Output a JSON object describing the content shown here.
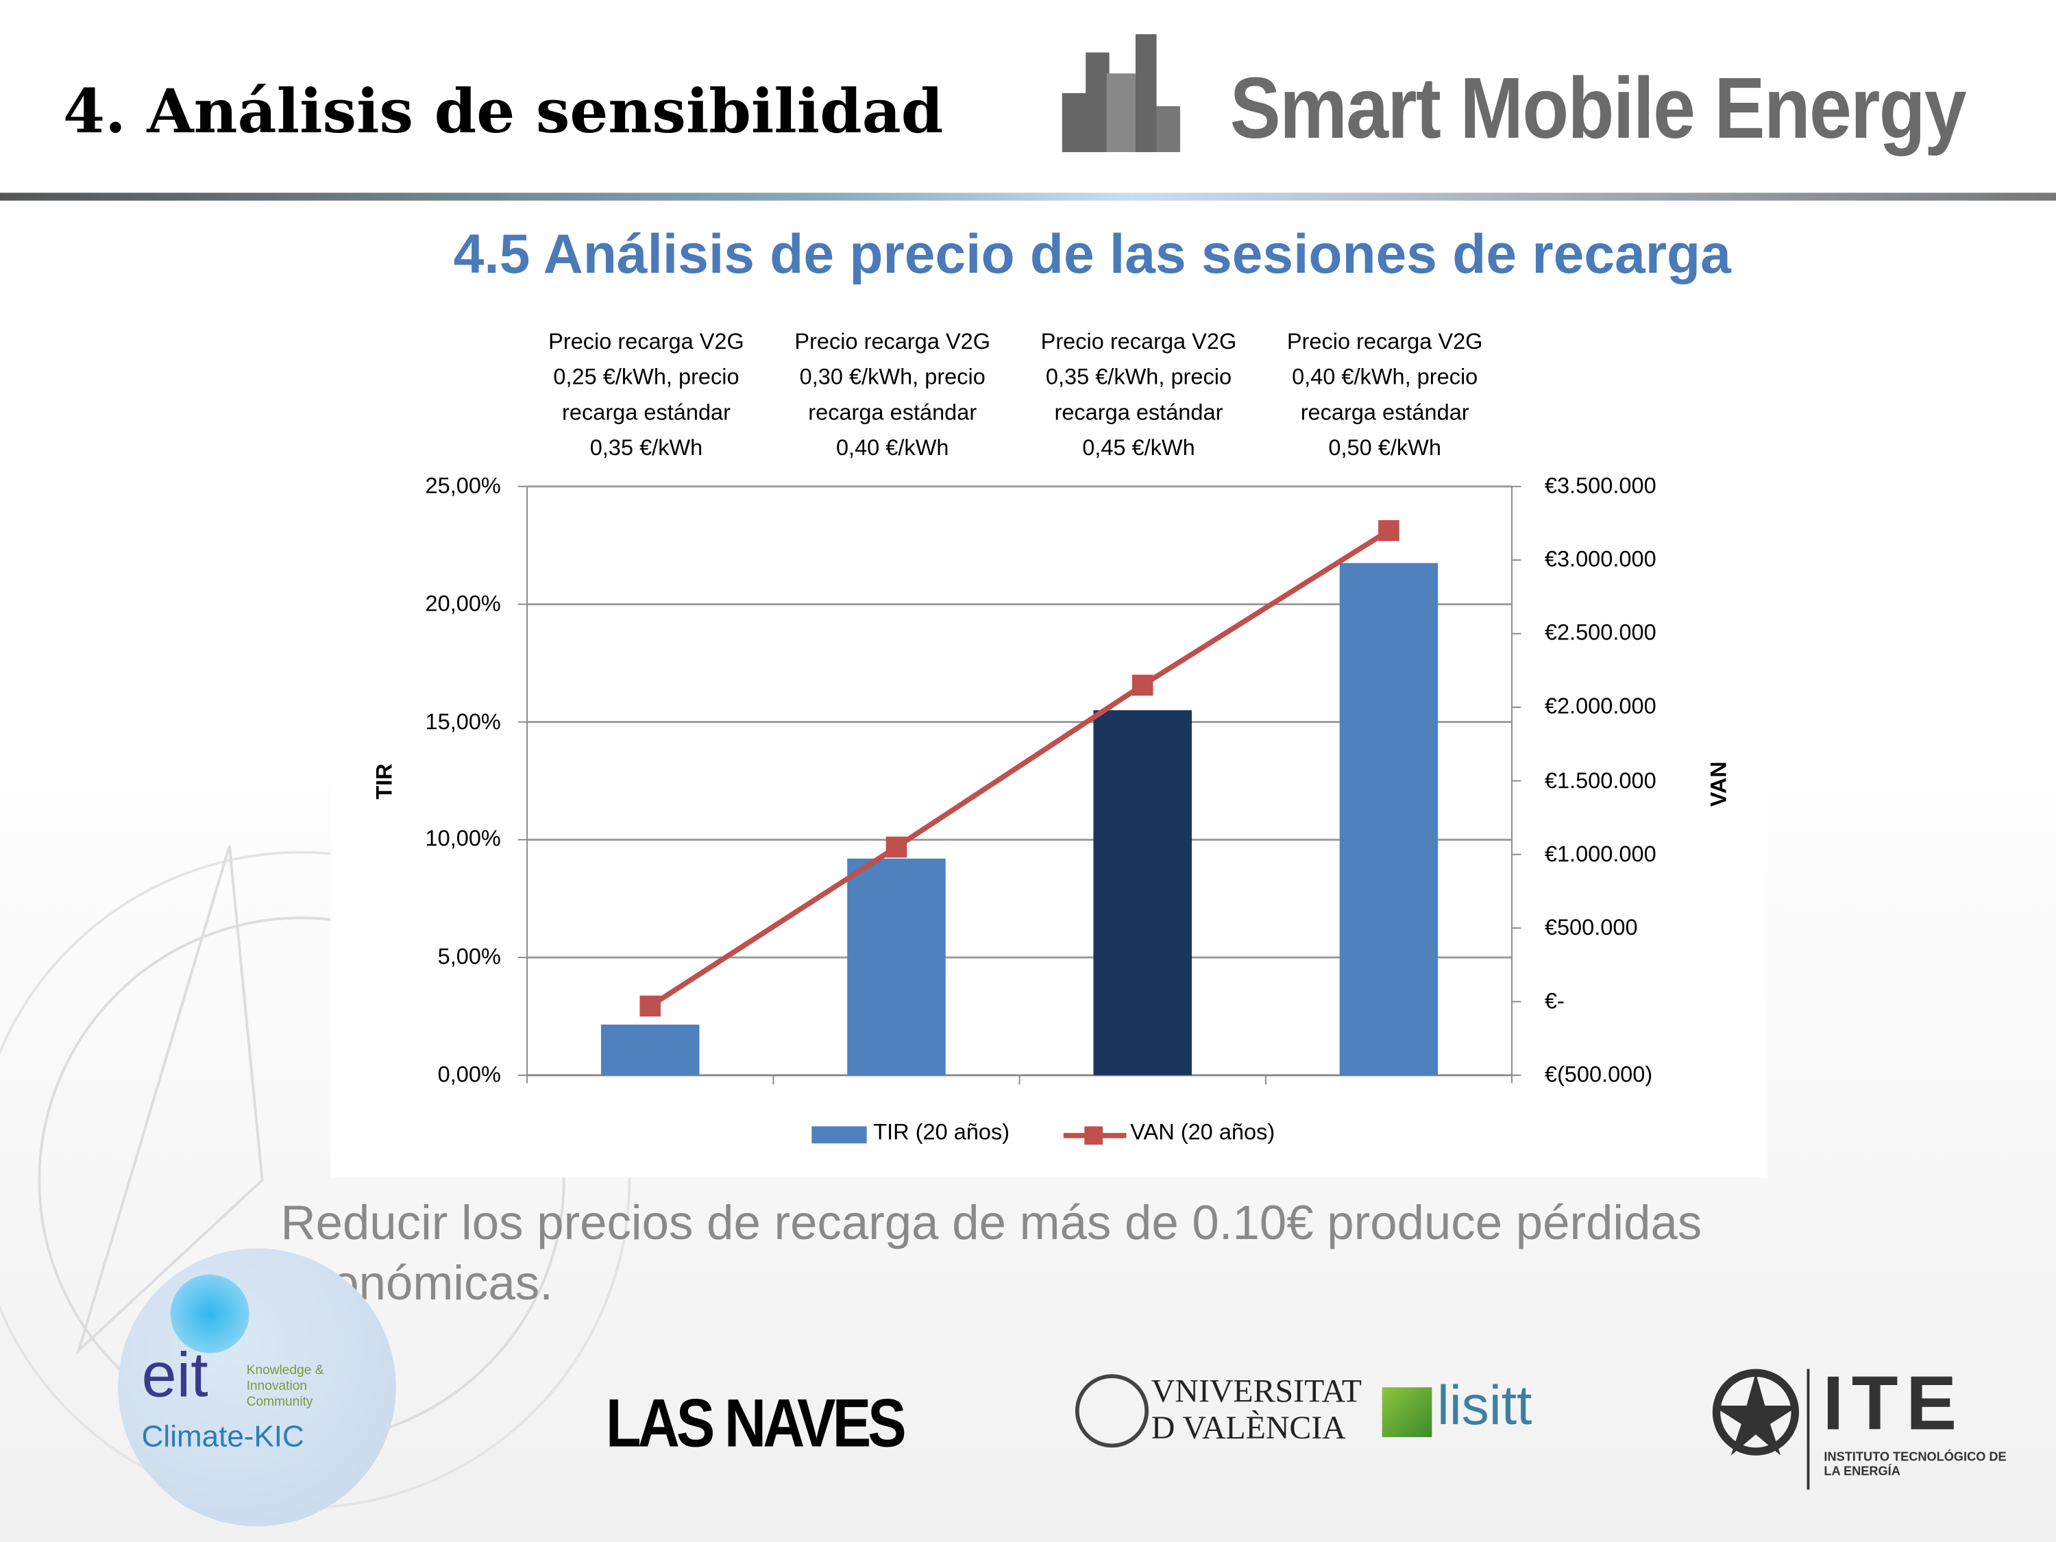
{
  "header": {
    "title": "4. Análisis de sensibilidad",
    "brand": "Smart Mobile Energy"
  },
  "subtitle": "4.5 Análisis de precio de las sesiones de recarga",
  "caption": "Reducir los precios de recarga de más de 0.10€ produce pérdidas económicas.",
  "chart_data": {
    "type": "bar",
    "categories": [
      "Precio recarga V2G 0,25 €/kWh, precio recarga estándar 0,35 €/kWh",
      "Precio recarga V2G 0,30 €/kWh, precio recarga estándar 0,40 €/kWh",
      "Precio recarga V2G 0,35 €/kWh, precio recarga estándar 0,45 €/kWh",
      "Precio recarga V2G 0,40 €/kWh, precio recarga estándar 0,50 €/kWh"
    ],
    "category_lines": [
      [
        "Precio recarga V2G",
        "0,25 €/kWh, precio",
        "recarga estándar",
        "0,35 €/kWh"
      ],
      [
        "Precio recarga V2G",
        "0,30 €/kWh, precio",
        "recarga estándar",
        "0,40 €/kWh"
      ],
      [
        "Precio recarga V2G",
        "0,35 €/kWh, precio",
        "recarga estándar",
        "0,45 €/kWh"
      ],
      [
        "Precio recarga V2G",
        "0,40 €/kWh, precio",
        "recarga estándar",
        "0,50 €/kWh"
      ]
    ],
    "series": [
      {
        "name": "TIR (20 años)",
        "type": "bar",
        "axis": "left",
        "values": [
          2.15,
          9.2,
          15.5,
          21.75
        ],
        "color": "#4f81bd",
        "highlight_index": 2,
        "highlight_color": "#1b365d"
      },
      {
        "name": "VAN (20 años)",
        "type": "line",
        "axis": "right",
        "values": [
          -30000,
          1050000,
          2150000,
          3200000
        ],
        "color": "#c0504d"
      }
    ],
    "ylabel": "TIR",
    "y2label": "VAN",
    "ylim": [
      0,
      25
    ],
    "y2lim": [
      -500000,
      3500000
    ],
    "yticks": [
      "0,00%",
      "5,00%",
      "10,00%",
      "15,00%",
      "20,00%",
      "25,00%"
    ],
    "y2ticks": [
      "€(500.000)",
      "€-",
      "€500.000",
      "€1.000.000",
      "€1.500.000",
      "€2.000.000",
      "€2.500.000",
      "€3.000.000",
      "€3.500.000"
    ],
    "grid": true,
    "legend": "bottom"
  },
  "logos": {
    "eit": "eit",
    "eit_sub": [
      "Knowledge &",
      "Innovation",
      "Community"
    ],
    "climate": "Climate-KIC",
    "naves": "LAS NAVES",
    "uv": [
      "VNIVERSITAT",
      "D VALÈNCIA"
    ],
    "lisitt": "lisitt",
    "ite": "ITE",
    "ite_sub": [
      "INSTITUTO TECNOLÓGICO DE",
      "LA ENERGÍA"
    ]
  }
}
